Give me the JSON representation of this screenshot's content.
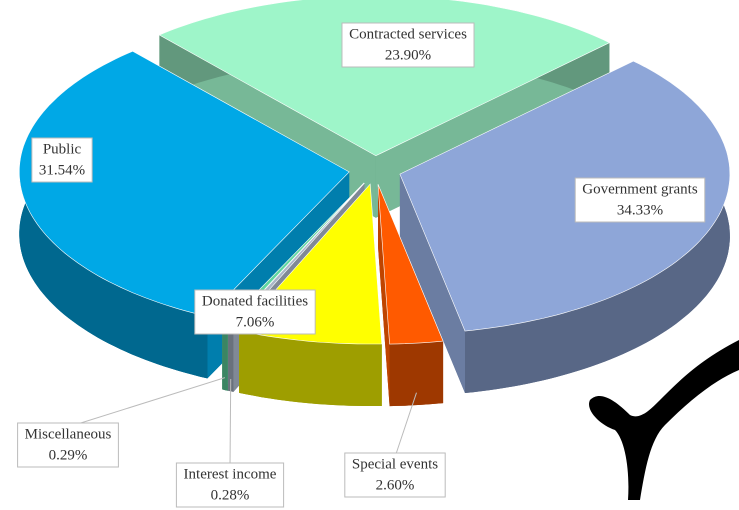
{
  "chart_data": {
    "type": "pie",
    "categories": [
      "Contracted services",
      "Government grants",
      "Special events",
      "Donated facilities",
      "Interest income",
      "Miscellaneous",
      "Public"
    ],
    "values": [
      23.9,
      34.33,
      2.6,
      7.06,
      0.28,
      0.29,
      31.54
    ],
    "value_labels": [
      "23.90%",
      "34.33%",
      "2.60%",
      "7.06%",
      "0.28%",
      "0.29%",
      "31.54%"
    ],
    "colors": [
      "#9ef5c9",
      "#8ea6d8",
      "#ff5a00",
      "#ffff00",
      "#aab6c8",
      "#5fd6a0",
      "#00a8e6"
    ]
  }
}
